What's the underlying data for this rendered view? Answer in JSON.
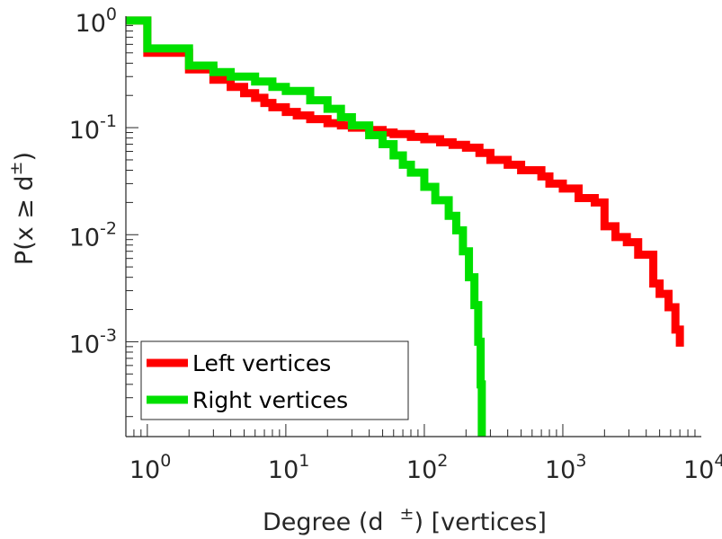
{
  "chart_data": {
    "type": "line",
    "title": "",
    "xscale": "log",
    "yscale": "log",
    "xlim": [
      0.7,
      10000
    ],
    "ylim": [
      0.00013,
      1.1
    ],
    "grid": false,
    "legend_position": "bottom-left",
    "xlabel": {
      "main": "Degree (d",
      "sup": "±",
      "tail": ") [vertices]"
    },
    "ylabel": {
      "main": "P(x ≥ d",
      "sup": "±",
      "tail": ")"
    },
    "xticks": [
      {
        "value": 1,
        "base": "10",
        "exp": "0"
      },
      {
        "value": 10,
        "base": "10",
        "exp": "1"
      },
      {
        "value": 100,
        "base": "10",
        "exp": "2"
      },
      {
        "value": 1000,
        "base": "10",
        "exp": "3"
      },
      {
        "value": 10000,
        "base": "10",
        "exp": "4"
      }
    ],
    "yticks": [
      {
        "value": 1,
        "base": "10",
        "exp": "0"
      },
      {
        "value": 0.1,
        "base": "10",
        "exp": "-1"
      },
      {
        "value": 0.01,
        "base": "10",
        "exp": "-2"
      },
      {
        "value": 0.001,
        "base": "10",
        "exp": "-3"
      }
    ],
    "series": [
      {
        "name": "Left vertices",
        "color": "#ff0000",
        "step": true,
        "x": [
          0.7,
          1,
          2,
          3,
          4,
          5,
          6,
          7,
          8,
          10,
          12,
          15,
          20,
          25,
          30,
          40,
          50,
          60,
          80,
          100,
          130,
          160,
          200,
          250,
          300,
          400,
          500,
          700,
          800,
          1000,
          1300,
          1700,
          2000,
          2400,
          2900,
          3500,
          4500,
          5000,
          5800,
          6500,
          7000
        ],
        "y": [
          1,
          0.5,
          0.35,
          0.28,
          0.24,
          0.21,
          0.19,
          0.17,
          0.155,
          0.14,
          0.13,
          0.12,
          0.11,
          0.105,
          0.1,
          0.095,
          0.09,
          0.087,
          0.082,
          0.078,
          0.073,
          0.069,
          0.065,
          0.058,
          0.05,
          0.045,
          0.04,
          0.035,
          0.03,
          0.027,
          0.022,
          0.02,
          0.012,
          0.0095,
          0.0085,
          0.0065,
          0.0035,
          0.0028,
          0.0021,
          0.0013,
          0.0009
        ]
      },
      {
        "name": "Right vertices",
        "color": "#00e000",
        "step": true,
        "x": [
          0.7,
          1,
          2,
          3,
          4,
          6,
          8,
          10,
          15,
          20,
          25,
          30,
          40,
          50,
          60,
          70,
          80,
          100,
          120,
          150,
          170,
          190,
          210,
          230,
          245,
          255,
          260
        ],
        "y": [
          1,
          0.55,
          0.38,
          0.33,
          0.3,
          0.27,
          0.24,
          0.22,
          0.18,
          0.15,
          0.125,
          0.105,
          0.085,
          0.07,
          0.055,
          0.045,
          0.038,
          0.028,
          0.021,
          0.015,
          0.011,
          0.007,
          0.004,
          0.0022,
          0.001,
          0.0004,
          0.00013
        ]
      }
    ]
  }
}
